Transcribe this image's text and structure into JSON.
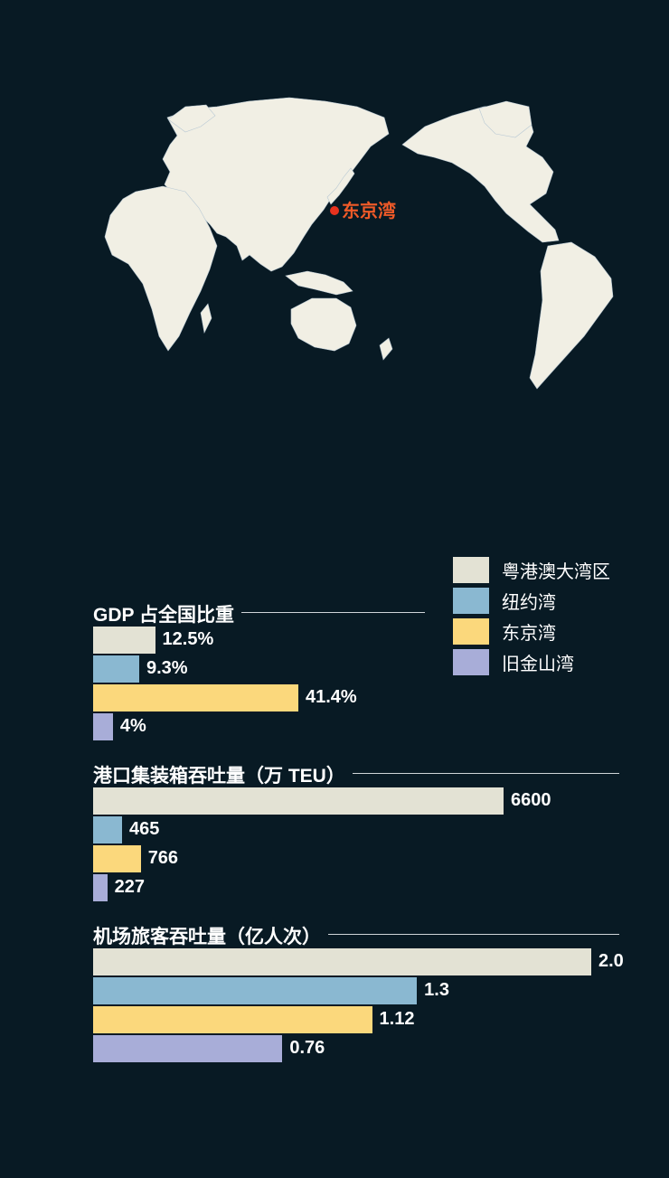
{
  "map": {
    "marker_label": "东京湾",
    "marker_color": "#e8321e",
    "label_color": "#f05a28",
    "land_color": "#f1efe4"
  },
  "legend": [
    {
      "label": "粤港澳大湾区",
      "color": "#e3e2d4"
    },
    {
      "label": "纽约湾",
      "color": "#8ab8d1"
    },
    {
      "label": "东京湾",
      "color": "#fbd87c"
    },
    {
      "label": "旧金山湾",
      "color": "#a8add8"
    }
  ],
  "chart_data": [
    {
      "type": "bar",
      "title": "GDP 占全国比重",
      "categories": [
        "粤港澳大湾区",
        "纽约湾",
        "东京湾",
        "旧金山湾"
      ],
      "values": [
        12.5,
        9.3,
        41.4,
        4
      ],
      "value_labels": [
        "12.5%",
        "9.3%",
        "41.4%",
        "4%"
      ],
      "orientation": "horizontal"
    },
    {
      "type": "bar",
      "title": "港口集装箱吞吐量（万 TEU）",
      "categories": [
        "粤港澳大湾区",
        "纽约湾",
        "东京湾",
        "旧金山湾"
      ],
      "values": [
        6600,
        465,
        766,
        227
      ],
      "value_labels": [
        "6600",
        "465",
        "766",
        "227"
      ],
      "orientation": "horizontal"
    },
    {
      "type": "bar",
      "title": "机场旅客吞吐量（亿人次）",
      "categories": [
        "粤港澳大湾区",
        "纽约湾",
        "东京湾",
        "旧金山湾"
      ],
      "values": [
        2.0,
        1.3,
        1.12,
        0.76
      ],
      "value_labels": [
        "2.0",
        "1.3",
        "1.12",
        "0.76"
      ],
      "orientation": "horizontal"
    }
  ]
}
